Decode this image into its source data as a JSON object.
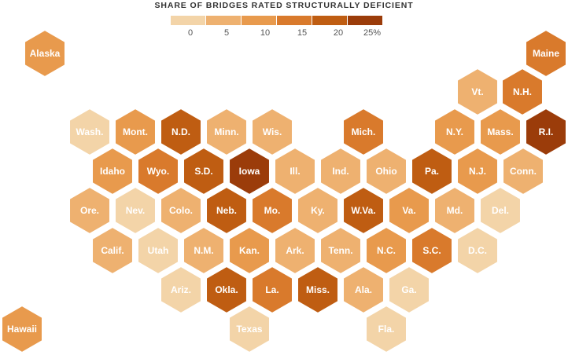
{
  "legend": {
    "title": "SHARE OF BRIDGES RATED STRUCTURALLY DEFICIENT",
    "ticks": [
      "0",
      "5",
      "10",
      "15",
      "20",
      "25%"
    ],
    "colors": [
      "#f3d4a8",
      "#eeb170",
      "#e89a4d",
      "#d97a2c",
      "#bf5d12",
      "#9b3c0a"
    ]
  },
  "states": [
    {
      "label": "Alaska",
      "value": 9
    },
    {
      "label": "Maine",
      "value": 14
    },
    {
      "label": "Vt.",
      "value": 8
    },
    {
      "label": "N.H.",
      "value": 13
    },
    {
      "label": "Wash.",
      "value": 4
    },
    {
      "label": "Mont.",
      "value": 9
    },
    {
      "label": "N.D.",
      "value": 19
    },
    {
      "label": "Minn.",
      "value": 6
    },
    {
      "label": "Wis.",
      "value": 8
    },
    {
      "label": "Mich.",
      "value": 13
    },
    {
      "label": "N.Y.",
      "value": 12
    },
    {
      "label": "Mass.",
      "value": 9
    },
    {
      "label": "R.I.",
      "value": 22
    },
    {
      "label": "Idaho",
      "value": 9
    },
    {
      "label": "Wyo.",
      "value": 14
    },
    {
      "label": "S.D.",
      "value": 20
    },
    {
      "label": "Iowa",
      "value": 24
    },
    {
      "label": "Ill.",
      "value": 8
    },
    {
      "label": "Ind.",
      "value": 8
    },
    {
      "label": "Ohio",
      "value": 7
    },
    {
      "label": "Pa.",
      "value": 20
    },
    {
      "label": "N.J.",
      "value": 9
    },
    {
      "label": "Conn.",
      "value": 8
    },
    {
      "label": "Ore.",
      "value": 6
    },
    {
      "label": "Nev.",
      "value": 2
    },
    {
      "label": "Colo.",
      "value": 6
    },
    {
      "label": "Neb.",
      "value": 17
    },
    {
      "label": "Mo.",
      "value": 14
    },
    {
      "label": "Ky.",
      "value": 8
    },
    {
      "label": "W.Va.",
      "value": 18
    },
    {
      "label": "Va.",
      "value": 9
    },
    {
      "label": "Md.",
      "value": 7
    },
    {
      "label": "Del.",
      "value": 4
    },
    {
      "label": "Calif.",
      "value": 7
    },
    {
      "label": "Utah",
      "value": 3
    },
    {
      "label": "N.M.",
      "value": 7
    },
    {
      "label": "Kan.",
      "value": 9
    },
    {
      "label": "Ark.",
      "value": 7
    },
    {
      "label": "Tenn.",
      "value": 6
    },
    {
      "label": "N.C.",
      "value": 11
    },
    {
      "label": "S.C.",
      "value": 15
    },
    {
      "label": "D.C.",
      "value": 4
    },
    {
      "label": "Ariz.",
      "value": 3
    },
    {
      "label": "Okla.",
      "value": 20
    },
    {
      "label": "La.",
      "value": 14
    },
    {
      "label": "Miss.",
      "value": 17
    },
    {
      "label": "Ala.",
      "value": 7
    },
    {
      "label": "Ga.",
      "value": 3
    },
    {
      "label": "Hawaii",
      "value": 9
    },
    {
      "label": "Texas",
      "value": 3
    },
    {
      "label": "Fla.",
      "value": 3
    }
  ]
}
